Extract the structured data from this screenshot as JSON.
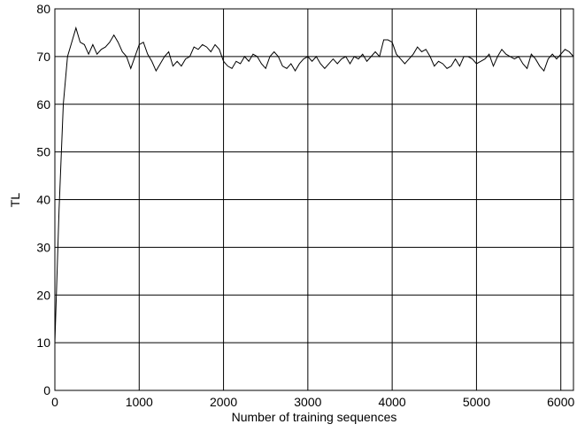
{
  "chart_data": {
    "type": "line",
    "xlabel": "Number of training sequences",
    "ylabel": "TL",
    "xlim": [
      0,
      6150
    ],
    "ylim": [
      0,
      80
    ],
    "xticks": [
      0,
      1000,
      2000,
      3000,
      4000,
      5000,
      6000
    ],
    "yticks": [
      0,
      10,
      20,
      30,
      40,
      50,
      60,
      70,
      80
    ],
    "grid": true,
    "series": [
      {
        "color": "#000000",
        "x": [
          0,
          50,
          100,
          150,
          200,
          250,
          300,
          350,
          400,
          450,
          500,
          550,
          600,
          650,
          700,
          750,
          800,
          850,
          900,
          950,
          1000,
          1050,
          1100,
          1150,
          1200,
          1250,
          1300,
          1350,
          1400,
          1450,
          1500,
          1550,
          1600,
          1650,
          1700,
          1750,
          1800,
          1850,
          1900,
          1950,
          2000,
          2050,
          2100,
          2150,
          2200,
          2250,
          2300,
          2350,
          2400,
          2450,
          2500,
          2550,
          2600,
          2650,
          2700,
          2750,
          2800,
          2850,
          2900,
          2950,
          3000,
          3050,
          3100,
          3150,
          3200,
          3250,
          3300,
          3350,
          3400,
          3450,
          3500,
          3550,
          3600,
          3650,
          3700,
          3750,
          3800,
          3850,
          3900,
          3950,
          4000,
          4050,
          4100,
          4150,
          4200,
          4250,
          4300,
          4350,
          4400,
          4450,
          4500,
          4550,
          4600,
          4650,
          4700,
          4750,
          4800,
          4850,
          4900,
          4950,
          5000,
          5050,
          5100,
          5150,
          5200,
          5250,
          5300,
          5350,
          5400,
          5450,
          5500,
          5550,
          5600,
          5650,
          5700,
          5750,
          5800,
          5850,
          5900,
          5950,
          6000,
          6050,
          6100,
          6150
        ],
        "values": [
          10,
          38,
          60,
          70,
          73,
          76,
          73,
          72.5,
          70.5,
          72.5,
          70.5,
          71.5,
          72,
          73,
          74.5,
          73,
          71,
          70,
          67.5,
          70,
          72.5,
          73,
          70.5,
          69,
          67,
          68.5,
          70,
          71,
          68,
          69,
          68,
          69.5,
          70,
          72,
          71.5,
          72.5,
          72,
          71,
          72.5,
          71.5,
          69,
          68,
          67.5,
          69,
          68.5,
          70,
          69,
          70.5,
          70,
          68.5,
          67.5,
          70,
          71,
          70,
          68,
          67.5,
          68.5,
          67,
          68.5,
          69.5,
          70,
          69,
          70,
          68.5,
          67.5,
          68.5,
          69.5,
          68.5,
          69.5,
          70,
          68.5,
          70,
          69.5,
          70.5,
          69,
          70,
          71,
          70,
          73.5,
          73.5,
          73,
          70.5,
          69.5,
          68.5,
          69.5,
          70.5,
          72,
          71,
          71.5,
          70,
          68,
          69,
          68.5,
          67.5,
          68,
          69.5,
          68,
          70,
          70,
          69.5,
          68.5,
          69,
          69.5,
          70.5,
          68,
          70,
          71.5,
          70.5,
          70,
          69.5,
          70,
          68.5,
          67.5,
          70.5,
          69.5,
          68,
          67,
          69.5,
          70.5,
          69.5,
          70.5,
          71.5,
          71,
          70
        ]
      }
    ]
  }
}
